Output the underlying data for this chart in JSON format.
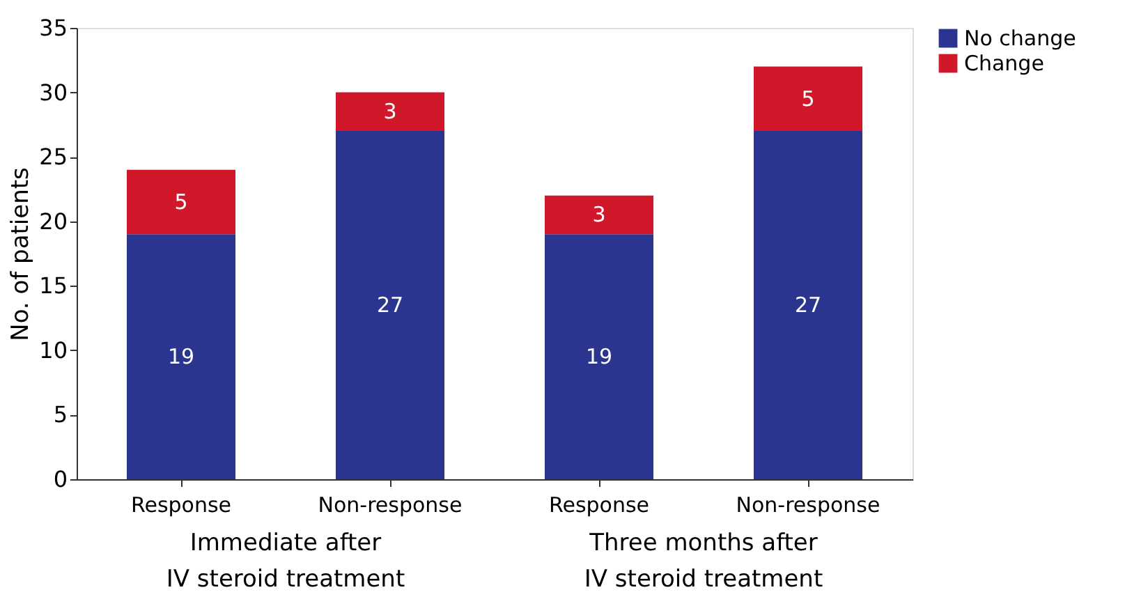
{
  "chart_data": {
    "type": "bar",
    "stacked": true,
    "ylabel": "No. of patients",
    "categories": [
      "Response",
      "Non-response",
      "Response",
      "Non-response"
    ],
    "series": [
      {
        "name": "No change",
        "color": "#2b3590",
        "values": [
          19,
          27,
          19,
          27
        ]
      },
      {
        "name": "Change",
        "color": "#d0182a",
        "values": [
          5,
          3,
          3,
          5
        ]
      }
    ],
    "ylim": [
      0,
      35
    ],
    "yticks": [
      0,
      5,
      10,
      15,
      20,
      25,
      30,
      35
    ],
    "grid": false,
    "legend": "right",
    "data_labels": true,
    "annotations": [
      "Immediate after\nIV steroid treatment",
      "Three months after\nIV steroid treatment"
    ]
  }
}
